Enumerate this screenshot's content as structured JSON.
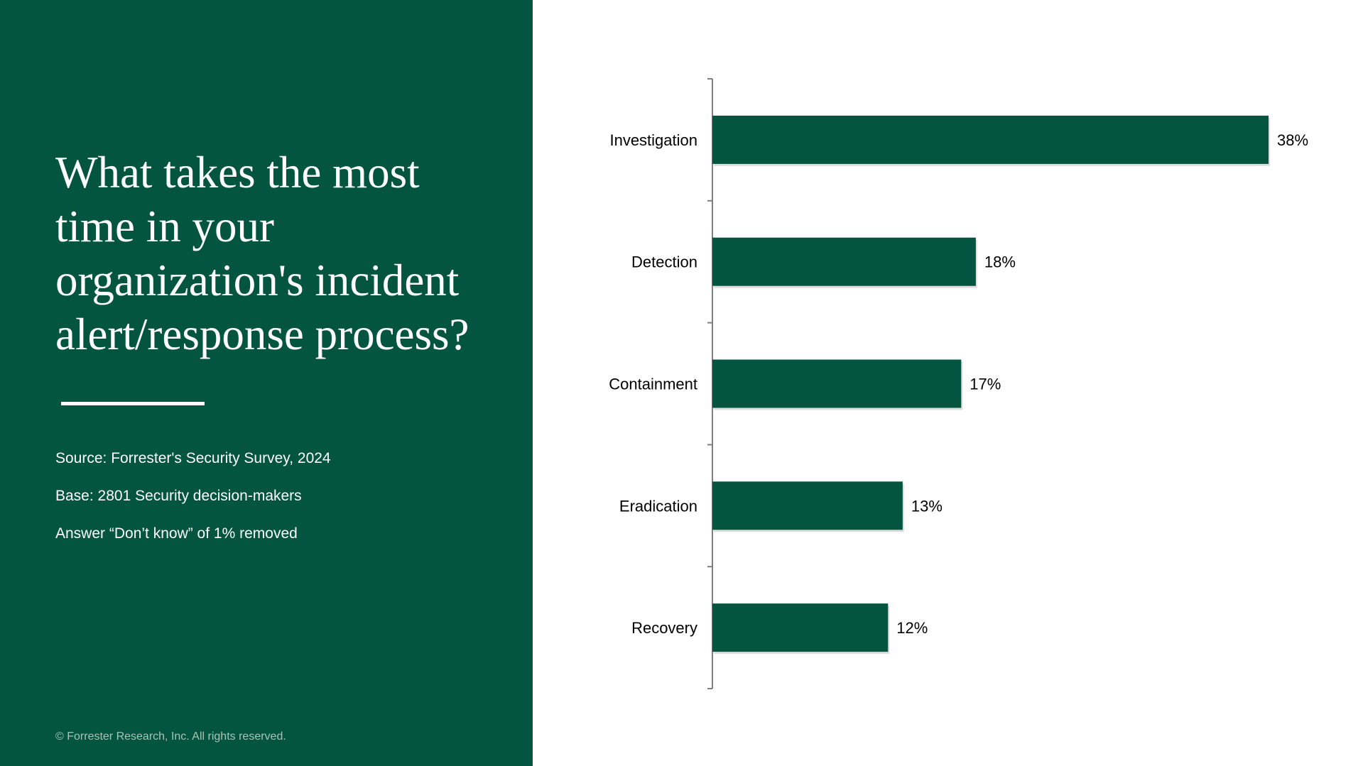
{
  "slide": {
    "title": "What takes the most time in your organization's incident alert/response process?",
    "source": "Source: Forrester's Security Survey, 2024",
    "base": "Base: 2801 Security decision-makers",
    "answer_note": "Answer “Don’t know” of 1% removed",
    "copyright": "© Forrester Research, Inc. All rights reserved."
  },
  "colors": {
    "panel": "#03553F",
    "bar": "#03553F",
    "text": "#000000",
    "axis": "#7f7f7f"
  },
  "chart_data": {
    "type": "bar",
    "orientation": "horizontal",
    "categories": [
      "Investigation",
      "Detection",
      "Containment",
      "Eradication",
      "Recovery"
    ],
    "values": [
      38,
      18,
      17,
      13,
      12
    ],
    "value_labels": [
      "38%",
      "18%",
      "17%",
      "13%",
      "12%"
    ],
    "unit": "%",
    "xlim": [
      0,
      38
    ],
    "grid": false,
    "legend": "none",
    "title": "",
    "xlabel": "",
    "ylabel": ""
  }
}
